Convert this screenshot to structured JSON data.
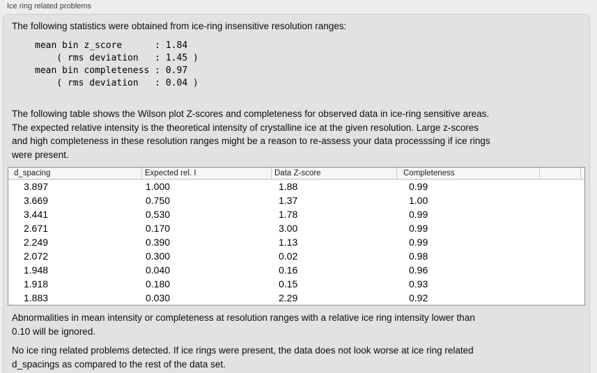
{
  "panel": {
    "title": "Ice ring related problems"
  },
  "intro": {
    "text": "The following statistics were obtained from ice-ring insensitive resolution ranges:"
  },
  "stats_block": {
    "lines": [
      "mean bin z_score      : 1.84",
      "    ( rms deviation   : 1.45 )",
      "mean bin completeness : 0.97",
      "    ( rms deviation   : 0.04 )"
    ]
  },
  "table_intro": {
    "lines": [
      "The following table shows the Wilson plot Z-scores and completeness for observed data in ice-ring sensitive areas.",
      "The expected relative intensity is the theoretical intensity of crystalline ice at the given resolution. Large z-scores",
      "and high completeness in these resolution ranges might be a reason to re-assess your data processsing if ice rings",
      "were present."
    ]
  },
  "table": {
    "columns": [
      "d_spacing",
      "Expected rel. I",
      "Data Z-score",
      "Completeness"
    ],
    "rows": [
      {
        "d_spacing": "3.897",
        "expected_rel_i": "1.000",
        "data_z_score": "1.88",
        "completeness": "0.99"
      },
      {
        "d_spacing": "3.669",
        "expected_rel_i": "0.750",
        "data_z_score": "1.37",
        "completeness": "1.00"
      },
      {
        "d_spacing": "3.441",
        "expected_rel_i": "0.530",
        "data_z_score": "1.78",
        "completeness": "0.99"
      },
      {
        "d_spacing": "2.671",
        "expected_rel_i": "0.170",
        "data_z_score": "3.00",
        "completeness": "0.99"
      },
      {
        "d_spacing": "2.249",
        "expected_rel_i": "0.390",
        "data_z_score": "1.13",
        "completeness": "0.99"
      },
      {
        "d_spacing": "2.072",
        "expected_rel_i": "0.300",
        "data_z_score": "0.02",
        "completeness": "0.98"
      },
      {
        "d_spacing": "1.948",
        "expected_rel_i": "0.040",
        "data_z_score": "0.16",
        "completeness": "0.96"
      },
      {
        "d_spacing": "1.918",
        "expected_rel_i": "0.180",
        "data_z_score": "0.15",
        "completeness": "0.93"
      },
      {
        "d_spacing": "1.883",
        "expected_rel_i": "0.030",
        "data_z_score": "2.29",
        "completeness": "0.92"
      }
    ]
  },
  "footnote": {
    "lines": [
      "Abnormalities in mean intensity or completeness at resolution ranges with a relative ice ring intensity lower than",
      "0.10 will be ignored."
    ]
  },
  "conclusion": {
    "lines": [
      "No ice ring related problems detected. If ice rings were present, the data does not look worse at ice ring related",
      "d_spacings as compared to the rest of the data set."
    ]
  }
}
